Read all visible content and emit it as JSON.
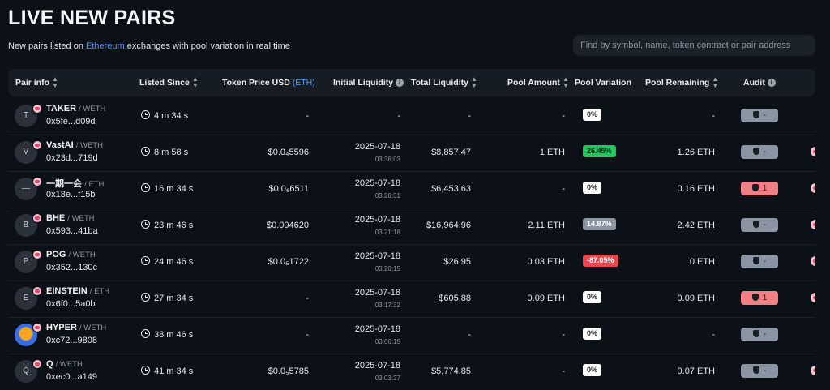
{
  "header": {
    "title": "LIVE NEW PAIRS",
    "subtitle_pre": "New pairs listed on",
    "subtitle_chain": "Ethereum",
    "subtitle_post": "exchanges with pool variation in real time",
    "search_placeholder": "Find by symbol, name, token contract or pair address"
  },
  "columns": {
    "pair_info": "Pair info",
    "listed_since": "Listed Since",
    "token_price": "Token Price USD",
    "token_price_unit": "(ETH)",
    "initial_liquidity": "Initial Liquidity",
    "total_liquidity": "Total Liquidity",
    "pool_amount": "Pool Amount",
    "pool_variation": "Pool Variation",
    "pool_remaining": "Pool Remaining",
    "audit": "Audit"
  },
  "colors": {
    "accent": "#5b8cff",
    "positive": "#22c55e",
    "negative": "#e5484d",
    "warning": "#f07f86",
    "neutral_badge": "#8a94a2"
  },
  "rows": [
    {
      "avatar": "T",
      "symbol": "TAKER",
      "quote": "/ WETH",
      "address": "0x5fe...d09d",
      "since": "4 m 34 s",
      "price": "-",
      "init_date": "",
      "init_time": "",
      "init_dash": "-",
      "total": "-",
      "pool": "-",
      "variation": "0%",
      "var_type": "neutral",
      "remaining": "-",
      "audit": "-",
      "audit_type": "ok",
      "edge": false
    },
    {
      "avatar": "V",
      "symbol": "VastAI",
      "quote": "/ WETH",
      "address": "0x23d...719d",
      "since": "8 m 58 s",
      "price": "$0.0₄5596",
      "init_date": "2025-07-18",
      "init_time": "03:36:03",
      "init_dash": "",
      "total": "$8,857.47",
      "pool": "1 ETH",
      "variation": "26.45%",
      "var_type": "pos",
      "remaining": "1.26 ETH",
      "audit": "-",
      "audit_type": "ok",
      "edge": true
    },
    {
      "avatar": "—",
      "symbol": "一期一会",
      "quote": "/ ETH",
      "address": "0x18e...f15b",
      "since": "16 m 34 s",
      "price": "$0.0₆6511",
      "init_date": "2025-07-18",
      "init_time": "03:28:31",
      "init_dash": "",
      "total": "$6,453.63",
      "pool": "-",
      "variation": "0%",
      "var_type": "neutral",
      "remaining": "0.16 ETH",
      "audit": "1",
      "audit_type": "warn",
      "edge": true
    },
    {
      "avatar": "B",
      "symbol": "BHE",
      "quote": "/ WETH",
      "address": "0x593...41ba",
      "since": "23 m 46 s",
      "price": "$0.004620",
      "init_date": "2025-07-18",
      "init_time": "03:21:18",
      "init_dash": "",
      "total": "$16,964.96",
      "pool": "2.11 ETH",
      "variation": "14.87%",
      "var_type": "gray",
      "remaining": "2.42 ETH",
      "audit": "-",
      "audit_type": "ok",
      "edge": true
    },
    {
      "avatar": "P",
      "symbol": "POG",
      "quote": "/ WETH",
      "address": "0x352...130c",
      "since": "24 m 46 s",
      "price": "$0.0₅1722",
      "init_date": "2025-07-18",
      "init_time": "03:20:15",
      "init_dash": "",
      "total": "$26.95",
      "pool": "0.03 ETH",
      "variation": "-87.05%",
      "var_type": "neg",
      "remaining": "0 ETH",
      "audit": "-",
      "audit_type": "ok",
      "edge": true
    },
    {
      "avatar": "E",
      "symbol": "EINSTEIN",
      "quote": "/ ETH",
      "address": "0x6f0...5a0b",
      "since": "27 m 34 s",
      "price": "-",
      "init_date": "2025-07-18",
      "init_time": "03:17:32",
      "init_dash": "",
      "total": "$605.88",
      "pool": "0.09 ETH",
      "variation": "0%",
      "var_type": "neutral",
      "remaining": "0.09 ETH",
      "audit": "1",
      "audit_type": "warn",
      "edge": true
    },
    {
      "avatar": "",
      "symbol": "HYPER",
      "quote": "/ WETH",
      "address": "0xc72...9808",
      "since": "38 m 46 s",
      "price": "-",
      "init_date": "2025-07-18",
      "init_time": "03:06:15",
      "init_dash": "",
      "total": "-",
      "pool": "-",
      "variation": "0%",
      "var_type": "neutral",
      "remaining": "-",
      "audit": "-",
      "audit_type": "ok",
      "edge": false,
      "hyper": true
    },
    {
      "avatar": "Q",
      "symbol": "Q",
      "quote": "/ WETH",
      "address": "0xec0...a149",
      "since": "41 m 34 s",
      "price": "$0.0₅5785",
      "init_date": "2025-07-18",
      "init_time": "03:03:27",
      "init_dash": "",
      "total": "$5,774.85",
      "pool": "-",
      "variation": "0%",
      "var_type": "neutral",
      "remaining": "0.07 ETH",
      "audit": "-",
      "audit_type": "ok",
      "edge": true
    }
  ]
}
